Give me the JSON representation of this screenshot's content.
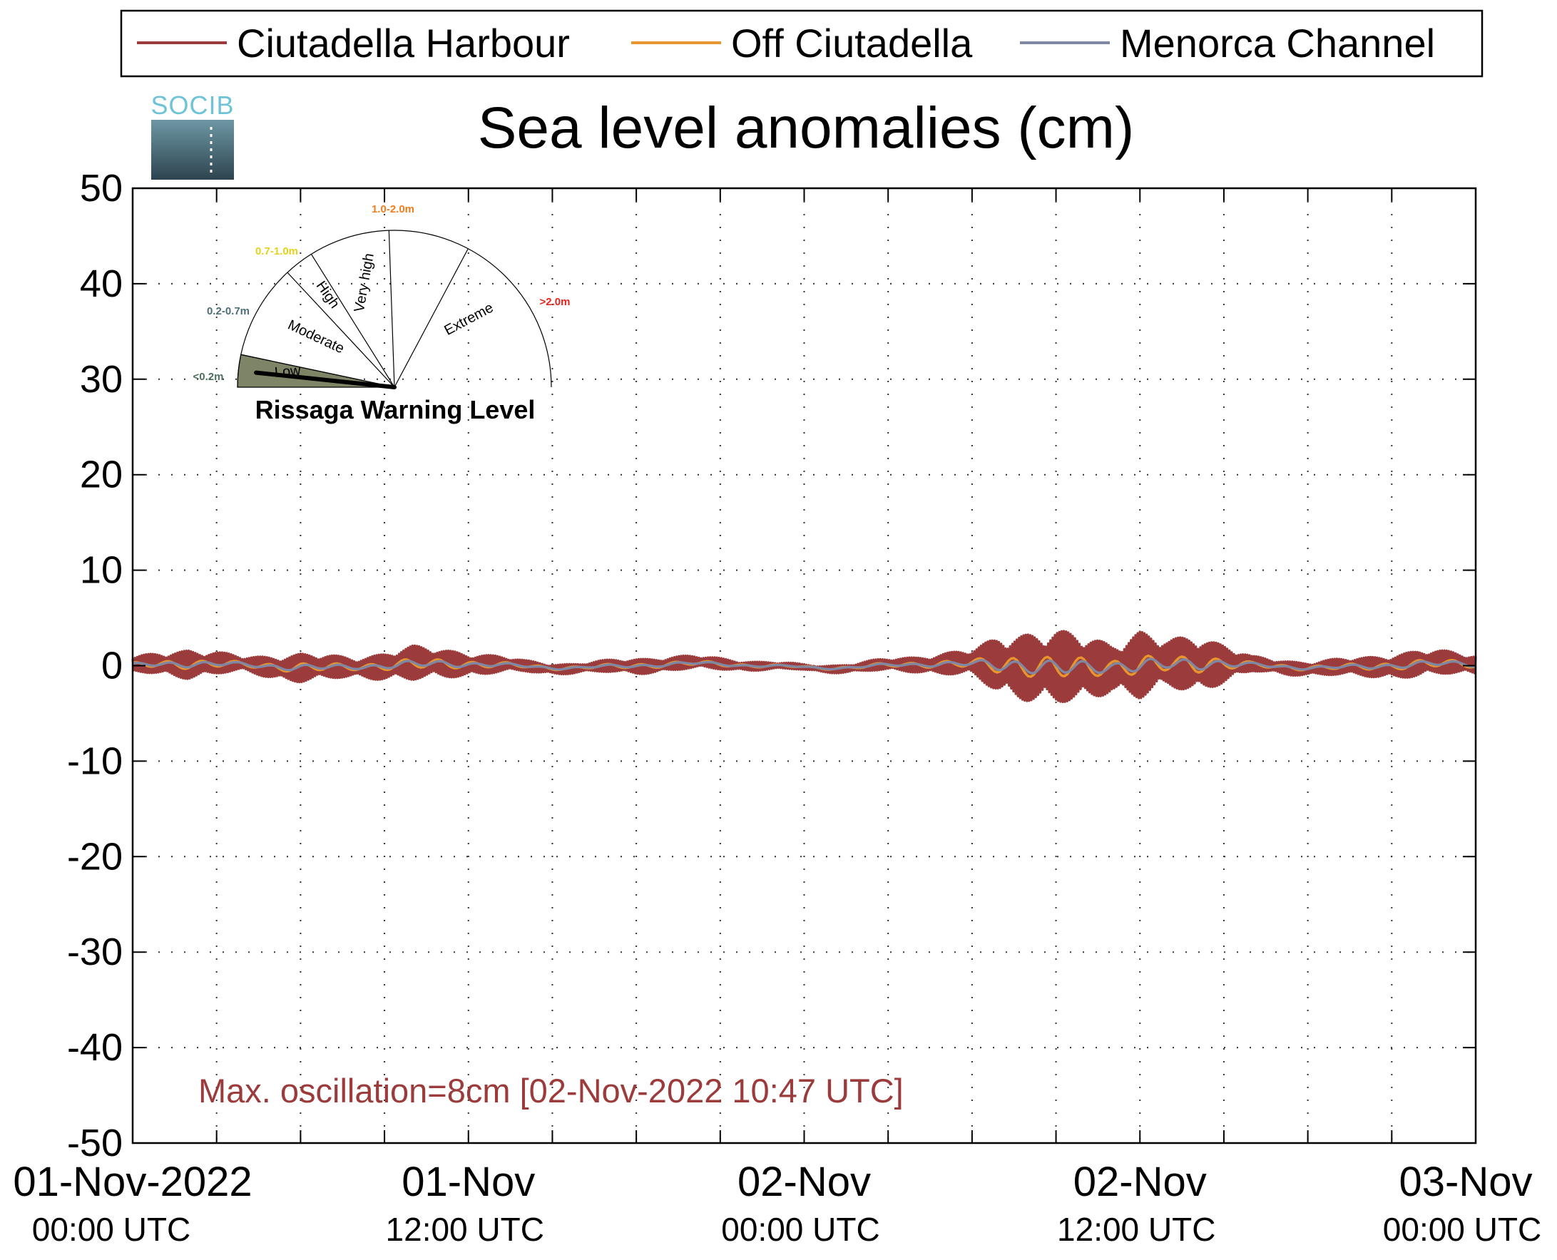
{
  "logo": {
    "text": "SOCIB"
  },
  "chart_data": {
    "type": "line",
    "title": "Sea level anomalies (cm)",
    "xlabel": "",
    "ylabel": "",
    "ylim": [
      -50,
      50
    ],
    "yticks": [
      50,
      40,
      30,
      20,
      10,
      0,
      -10,
      -20,
      -30,
      -40,
      -50
    ],
    "xlim_hours": [
      0,
      48
    ],
    "xtick_hours": [
      0,
      3,
      6,
      9,
      12,
      15,
      18,
      21,
      24,
      27,
      30,
      33,
      36,
      39,
      42,
      45,
      48
    ],
    "xtick_labels": [
      {
        "hour": 0,
        "date": "01-Nov-2022",
        "time": "00:00 UTC"
      },
      {
        "hour": 12,
        "date": "01-Nov",
        "time": "12:00 UTC"
      },
      {
        "hour": 24,
        "date": "02-Nov",
        "time": "00:00 UTC"
      },
      {
        "hour": 36,
        "date": "02-Nov",
        "time": "12:00 UTC"
      },
      {
        "hour": 48,
        "date": "03-Nov",
        "time": "00:00 UTC"
      }
    ],
    "grid": true,
    "legend": {
      "placement": "top"
    },
    "series": [
      {
        "name": "Ciutadella Harbour",
        "color": "#9c3b3b",
        "envelope": {
          "hours": [
            0,
            2,
            4,
            6,
            8,
            10,
            12,
            14,
            16,
            18,
            20,
            22,
            24,
            26,
            28,
            30,
            31,
            32,
            33,
            34,
            35,
            36,
            37,
            38,
            39,
            40,
            42,
            44,
            46,
            48
          ],
          "half_range": [
            0.8,
            1.5,
            0.8,
            1.5,
            1.0,
            1.8,
            1.2,
            0.6,
            0.5,
            0.8,
            0.7,
            0.5,
            0.3,
            0.5,
            0.8,
            1.4,
            3.0,
            3.5,
            3.8,
            3.5,
            2.5,
            3.5,
            2.5,
            3.0,
            2.0,
            0.8,
            0.7,
            1.0,
            1.4,
            1.0
          ]
        }
      },
      {
        "name": "Off Ciutadella",
        "color": "#e8952e"
      },
      {
        "name": "Menorca Channel",
        "color": "#7f87a3"
      }
    ],
    "annotation": "Max. oscillation=8cm [02-Nov-2022 10:47 UTC]",
    "annotation_color": "#9c3b3b"
  },
  "gauge": {
    "title": "Rissaga Warning Level",
    "needle_level": "Low",
    "sectors": [
      {
        "label": "Low",
        "range": "<0.2m",
        "color": "#4f6f5f"
      },
      {
        "label": "Moderate",
        "range": "0.2-0.7m",
        "color": "#4f6f78"
      },
      {
        "label": "High",
        "range": "0.7-1.0m",
        "color": "#e6d21a"
      },
      {
        "label": "Very high",
        "range": "1.0-2.0m",
        "color": "#f07d1a"
      },
      {
        "label": "Extreme",
        "range": ">2.0m",
        "color": "#e8241c"
      }
    ],
    "low_fill_color": "#7d8566"
  }
}
